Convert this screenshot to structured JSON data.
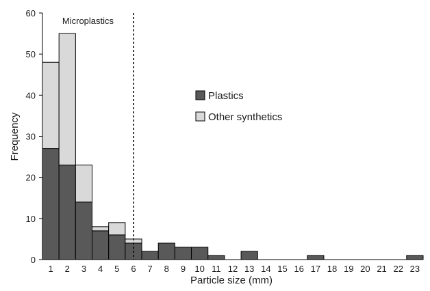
{
  "chart_data": {
    "type": "bar",
    "stacked": true,
    "categories": [
      "1",
      "2",
      "3",
      "4",
      "5",
      "6",
      "7",
      "8",
      "9",
      "10",
      "11",
      "12",
      "13",
      "14",
      "15",
      "16",
      "17",
      "18",
      "19",
      "20",
      "21",
      "22",
      "23"
    ],
    "series": [
      {
        "name": "Plastics",
        "color": "#595959",
        "values": [
          27,
          23,
          14,
          7,
          6,
          4,
          2,
          4,
          3,
          3,
          1,
          0,
          2,
          0,
          0,
          0,
          1,
          0,
          0,
          0,
          0,
          0,
          1
        ]
      },
      {
        "name": "Other synthetics",
        "color": "#d9d9d9",
        "values": [
          21,
          32,
          9,
          1,
          3,
          1,
          0,
          0,
          0,
          0,
          0,
          0,
          0,
          0,
          0,
          0,
          0,
          0,
          0,
          0,
          0,
          0,
          0
        ]
      }
    ],
    "xlabel": "Particle size (mm)",
    "ylabel": "Frequency",
    "ylim": [
      0,
      60
    ],
    "yticks": [
      0,
      10,
      20,
      30,
      40,
      50,
      60
    ],
    "annotation": {
      "label": "Microplastics",
      "threshold_x": 5.5
    },
    "legend_position": "center-right",
    "grid": false
  }
}
